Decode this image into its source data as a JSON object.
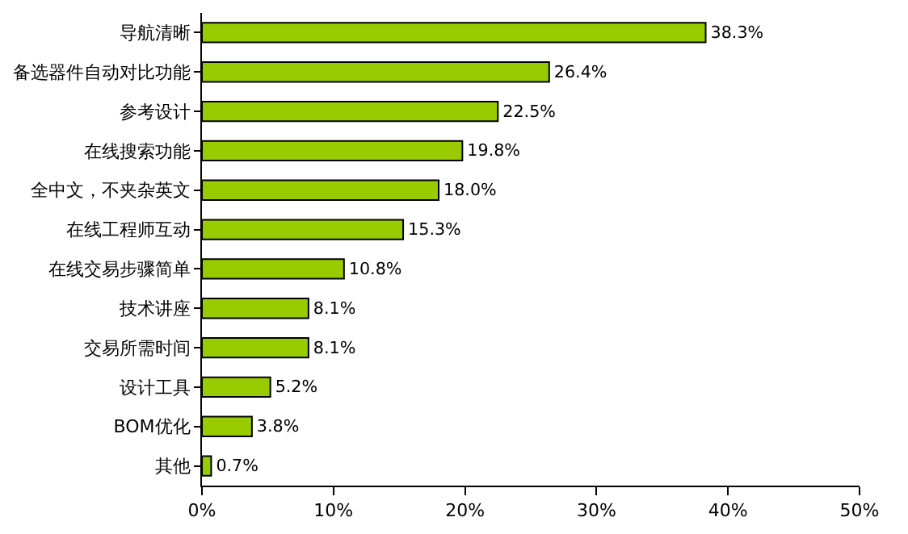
{
  "chart_data": {
    "type": "bar",
    "orientation": "horizontal",
    "categories": [
      "导航清晰",
      "备选器件自动对比功能",
      "参考设计",
      "在线搜索功能",
      "全中文，不夹杂英文",
      "在线工程师互动",
      "在线交易步骤简单",
      "技术讲座",
      "交易所需时间",
      "设计工具",
      "BOM优化",
      "其他"
    ],
    "values": [
      38.3,
      26.4,
      22.5,
      19.8,
      18.0,
      15.3,
      10.8,
      8.1,
      8.1,
      5.2,
      3.8,
      0.7
    ],
    "value_labels": [
      "38.3%",
      "26.4%",
      "22.5%",
      "19.8%",
      "18.0%",
      "15.3%",
      "10.8%",
      "8.1%",
      "8.1%",
      "5.2%",
      "3.8%",
      "0.7%"
    ],
    "color": "#99cc00",
    "xlim": [
      0,
      50
    ],
    "xticks": [
      {
        "value": 0,
        "label": "0%"
      },
      {
        "value": 10,
        "label": "10%"
      },
      {
        "value": 20,
        "label": "20%"
      },
      {
        "value": 30,
        "label": "30%"
      },
      {
        "value": 40,
        "label": "40%"
      },
      {
        "value": 50,
        "label": "50%"
      }
    ],
    "grid": false,
    "legend": false
  }
}
